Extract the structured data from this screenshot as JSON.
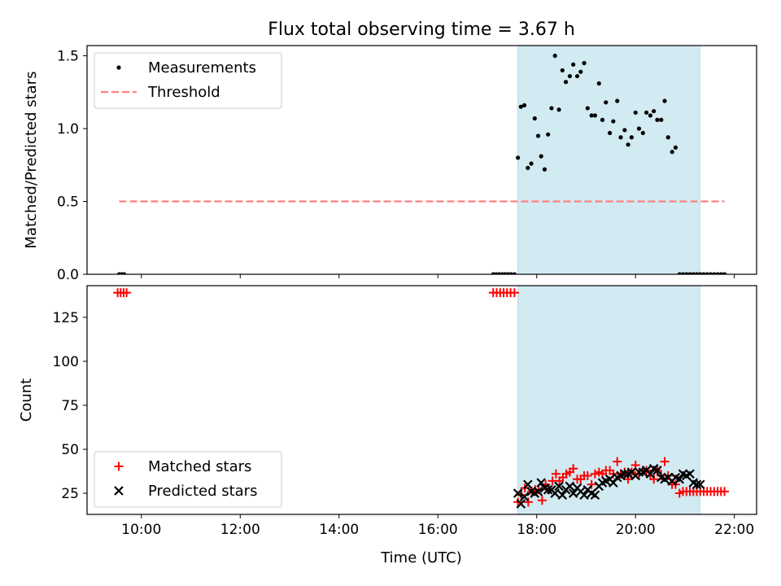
{
  "chart_data": {
    "title": "Flux total observing time = 3.67 h",
    "xlabel": "Time (UTC)",
    "xlim": [
      8.9,
      22.45
    ],
    "xticks": [
      10,
      12,
      14,
      16,
      18,
      20,
      22
    ],
    "xtick_labels": [
      "10:00",
      "12:00",
      "14:00",
      "16:00",
      "18:00",
      "20:00",
      "22:00"
    ],
    "observing_window": [
      17.62,
      21.3
    ],
    "window_color": "#add8e6",
    "panels": [
      {
        "type": "scatter",
        "ylabel": "Matched/Predicted stars",
        "ylim": [
          0,
          1.57
        ],
        "yticks": [
          0.0,
          0.5,
          1.0,
          1.5
        ],
        "ytick_labels": [
          "0.0",
          "0.5",
          "1.0",
          "1.5"
        ],
        "legend_position": "upper-left",
        "series": [
          {
            "name": "Measurements",
            "marker": "dot",
            "color": "#000000",
            "x": [
              9.55,
              9.6,
              9.65,
              17.12,
              17.18,
              17.24,
              17.3,
              17.36,
              17.42,
              17.48,
              17.55,
              17.62,
              17.68,
              17.75,
              17.82,
              17.89,
              17.96,
              18.03,
              18.09,
              18.16,
              18.23,
              18.3,
              18.37,
              18.45,
              18.52,
              18.59,
              18.67,
              18.74,
              18.82,
              18.89,
              18.96,
              19.03,
              19.11,
              19.18,
              19.26,
              19.33,
              19.4,
              19.48,
              19.55,
              19.63,
              19.7,
              19.78,
              19.85,
              19.92,
              20.0,
              20.07,
              20.15,
              20.22,
              20.3,
              20.37,
              20.44,
              20.52,
              20.59,
              20.66,
              20.74,
              20.81,
              20.89,
              20.96,
              21.03,
              21.1,
              21.17,
              21.24,
              21.31,
              21.38,
              21.45,
              21.52,
              21.59,
              21.66,
              21.73,
              21.8
            ],
            "y": [
              0,
              0,
              0,
              0,
              0,
              0,
              0,
              0,
              0,
              0,
              0,
              0.8,
              1.15,
              1.16,
              0.73,
              0.76,
              1.07,
              0.95,
              0.81,
              0.72,
              0.96,
              1.14,
              1.5,
              1.13,
              1.4,
              1.32,
              1.36,
              1.44,
              1.36,
              1.39,
              1.45,
              1.14,
              1.09,
              1.09,
              1.31,
              1.06,
              1.18,
              0.97,
              1.05,
              1.19,
              0.94,
              0.99,
              0.89,
              0.94,
              1.11,
              1.0,
              0.97,
              1.11,
              1.09,
              1.12,
              1.06,
              1.06,
              1.19,
              0.94,
              0.84,
              0.87,
              0,
              0,
              0,
              0,
              0,
              0,
              0,
              0,
              0,
              0,
              0,
              0,
              0,
              0
            ]
          },
          {
            "name": "Threshold",
            "marker": "dashed-line",
            "color": "#ff8080",
            "x": [
              9.55,
              21.8
            ],
            "y": [
              0.5,
              0.5
            ]
          }
        ]
      },
      {
        "type": "scatter",
        "ylabel": "Count",
        "ylim": [
          13,
          143
        ],
        "yticks": [
          25,
          50,
          75,
          100,
          125
        ],
        "ytick_labels": [
          "25",
          "50",
          "75",
          "100",
          "125"
        ],
        "legend_position": "lower-left",
        "series": [
          {
            "name": "Matched stars",
            "marker": "plus",
            "color": "#ff0000",
            "x": [
              9.52,
              9.58,
              9.64,
              9.7,
              17.12,
              17.19,
              17.26,
              17.33,
              17.4,
              17.47,
              17.55,
              17.62,
              17.69,
              17.76,
              17.83,
              17.9,
              17.97,
              18.04,
              18.11,
              18.18,
              18.25,
              18.32,
              18.39,
              18.46,
              18.53,
              18.6,
              18.67,
              18.74,
              18.82,
              18.89,
              18.96,
              19.03,
              19.11,
              19.18,
              19.26,
              19.33,
              19.4,
              19.48,
              19.55,
              19.63,
              19.7,
              19.78,
              19.85,
              19.92,
              20.0,
              20.07,
              20.15,
              20.22,
              20.3,
              20.37,
              20.44,
              20.52,
              20.59,
              20.66,
              20.74,
              20.81,
              20.89,
              20.96,
              21.03,
              21.1,
              21.17,
              21.24,
              21.31,
              21.38,
              21.45,
              21.52,
              21.59,
              21.66,
              21.73,
              21.8
            ],
            "y": [
              139,
              139,
              139,
              139,
              139,
              139,
              139,
              139,
              139,
              139,
              139,
              20,
              24,
              28,
              20,
              26,
              27,
              27,
              21,
              30,
              27,
              32,
              36,
              32,
              34,
              36,
              37,
              39,
              33,
              33,
              35,
              35,
              30,
              36,
              37,
              36,
              38,
              38,
              36,
              43,
              36,
              37,
              33,
              37,
              41,
              36,
              38,
              38,
              35,
              33,
              38,
              35,
              43,
              35,
              30,
              30,
              25,
              26,
              26,
              26,
              26,
              26,
              26,
              26,
              26,
              26,
              26,
              26,
              26,
              26
            ]
          },
          {
            "name": "Predicted stars",
            "marker": "x",
            "color": "#000000",
            "x": [
              17.62,
              17.68,
              17.75,
              17.82,
              17.89,
              17.96,
              18.03,
              18.09,
              18.16,
              18.23,
              18.3,
              18.37,
              18.45,
              18.52,
              18.59,
              18.67,
              18.74,
              18.82,
              18.89,
              18.96,
              19.03,
              19.11,
              19.18,
              19.26,
              19.33,
              19.4,
              19.48,
              19.55,
              19.63,
              19.7,
              19.78,
              19.85,
              19.92,
              20.0,
              20.07,
              20.15,
              20.22,
              20.3,
              20.37,
              20.44,
              20.52,
              20.59,
              20.66,
              20.74,
              20.81,
              20.89,
              20.96,
              21.03,
              21.1,
              21.17,
              21.24,
              21.31
            ],
            "y": [
              25,
              19,
              23,
              30,
              26,
              25,
              26,
              31,
              28,
              27,
              27,
              25,
              29,
              24,
              27,
              29,
              25,
              28,
              26,
              24,
              27,
              25,
              24,
              29,
              31,
              32,
              33,
              31,
              34,
              35,
              36,
              36,
              37,
              35,
              37,
              37,
              38,
              36,
              39,
              38,
              34,
              33,
              34,
              32,
              34,
              33,
              36,
              35,
              36,
              31,
              30,
              30
            ]
          }
        ]
      }
    ]
  }
}
